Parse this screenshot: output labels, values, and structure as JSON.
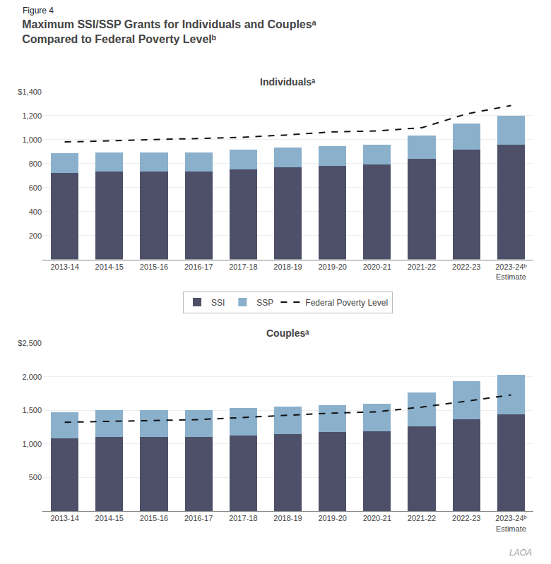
{
  "title": "Maximum SSI/SSP Grants for Individuals and Couplesᵃ\nCompared to Federal Poverty Levelᵇ",
  "annotations": [
    "Figure 4",
    "LAOA"
  ],
  "chart_data": [
    {
      "type": "bar",
      "title": "Individualsᵃ",
      "stacked": true,
      "grid": true,
      "legend": "bottom",
      "categories": [
        "2013-14",
        "2014-15",
        "2015-16",
        "2016-17",
        "2017-18",
        "2018-19",
        "2019-20",
        "2020-21",
        "2021-22",
        "2022-23",
        "2023-24ᵇ\nEstimate"
      ],
      "series": [
        {
          "name": "SSI",
          "type": "bar",
          "color": "#4d5068",
          "values": [
            723,
            733,
            733,
            733,
            754,
            771,
            783,
            794,
            841,
            914,
            960
          ]
        },
        {
          "name": "SSP",
          "type": "bar",
          "color": "#8ab0cc",
          "values": [
            162,
            162,
            162,
            162,
            162,
            162,
            162,
            162,
            192,
            222,
            238
          ]
        },
        {
          "name": "Federal Poverty Level",
          "type": "line",
          "line_style": "dashed",
          "color": "#111111",
          "values": [
            981,
            990,
            1000,
            1010,
            1020,
            1040,
            1065,
            1073,
            1100,
            1215,
            1285
          ]
        }
      ],
      "ylim": [
        0,
        1400
      ],
      "yticks": [
        200,
        400,
        600,
        800,
        {
          "value": 1000,
          "label": "1,000"
        },
        {
          "value": 1200,
          "label": "1,200"
        },
        {
          "value": 1400,
          "label": "$1,400"
        }
      ]
    },
    {
      "type": "bar",
      "title": "Couplesᵃ",
      "stacked": true,
      "grid": true,
      "categories": [
        "2013-14",
        "2014-15",
        "2015-16",
        "2016-17",
        "2017-18",
        "2018-19",
        "2019-20",
        "2020-21",
        "2021-22",
        "2022-23",
        "2023-24ᵇ\nEstimate"
      ],
      "series": [
        {
          "name": "SSI",
          "type": "bar",
          "color": "#4d5068",
          "values": [
            1082,
            1100,
            1100,
            1100,
            1125,
            1150,
            1175,
            1191,
            1261,
            1371,
            1438
          ]
        },
        {
          "name": "SSP",
          "type": "bar",
          "color": "#8ab0cc",
          "values": [
            390,
            400,
            400,
            400,
            408,
            408,
            408,
            408,
            508,
            568,
            588
          ]
        },
        {
          "name": "Federal Poverty Level",
          "type": "line",
          "line_style": "dashed",
          "color": "#111111",
          "values": [
            1324,
            1335,
            1348,
            1363,
            1395,
            1428,
            1461,
            1480,
            1550,
            1638,
            1731
          ]
        }
      ],
      "ylim": [
        0,
        2500
      ],
      "yticks": [
        500,
        {
          "value": 1000,
          "label": "1,000"
        },
        {
          "value": 1500,
          "label": "1,500"
        },
        {
          "value": 2000,
          "label": "2,000"
        },
        {
          "value": 2500,
          "label": "$2,500"
        }
      ]
    }
  ]
}
